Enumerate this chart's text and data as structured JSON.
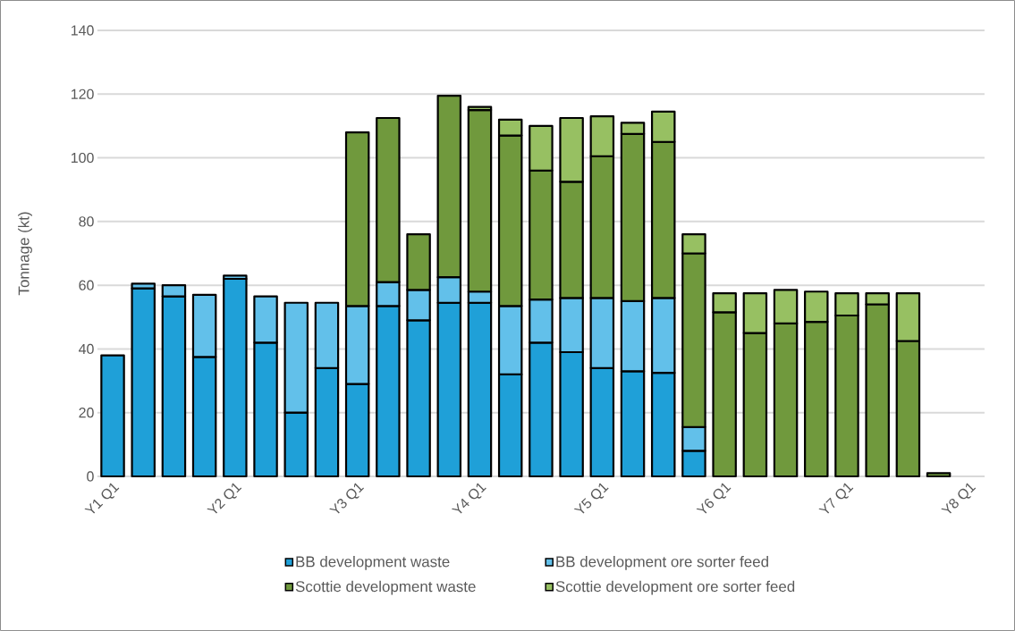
{
  "chart_data": {
    "type": "bar",
    "stacked": true,
    "ylabel": "Tonnage (kt)",
    "categories": [
      "Y1 Q1",
      null,
      null,
      null,
      "Y2 Q1",
      null,
      null,
      null,
      "Y3 Q1",
      null,
      null,
      null,
      "Y4 Q1",
      null,
      null,
      null,
      "Y5 Q1",
      null,
      null,
      null,
      "Y6 Q1",
      null,
      null,
      null,
      "Y7 Q1",
      null,
      null,
      null,
      "Y8 Q1"
    ],
    "series": [
      {
        "name": "BB development waste",
        "color": "#1fa0d8",
        "values": [
          38,
          59,
          56.5,
          37.5,
          62,
          42,
          20,
          34,
          29,
          53.5,
          49,
          54.5,
          54.5,
          32,
          42,
          39,
          34,
          33,
          32.5,
          8,
          null,
          null,
          null,
          null,
          null,
          null,
          null,
          null,
          null
        ]
      },
      {
        "name": "BB development ore sorter feed",
        "color": "#62c0ea",
        "values": [
          null,
          1.5,
          3.5,
          19.5,
          1,
          14.5,
          34.5,
          20.5,
          24.5,
          7.5,
          9.5,
          8,
          3.5,
          21.5,
          13.5,
          17,
          22,
          22,
          23.5,
          7.5,
          null,
          null,
          null,
          null,
          null,
          null,
          null,
          null,
          null
        ]
      },
      {
        "name": "Scottie development waste",
        "color": "#70993d",
        "values": [
          null,
          null,
          null,
          null,
          null,
          null,
          null,
          null,
          54.5,
          51.5,
          17.5,
          57,
          57,
          53.5,
          40.5,
          36.5,
          44.5,
          52.5,
          49,
          54.5,
          51.5,
          45,
          48,
          48.5,
          50.5,
          54,
          42.5,
          1,
          null
        ]
      },
      {
        "name": "Scottie development ore sorter feed",
        "color": "#97c062",
        "values": [
          null,
          null,
          null,
          null,
          null,
          null,
          null,
          null,
          null,
          null,
          null,
          null,
          1,
          5,
          14,
          20,
          12.5,
          3.5,
          9.5,
          6,
          6,
          12.5,
          10.5,
          9.5,
          7,
          3.5,
          15,
          null,
          null
        ]
      }
    ],
    "ylim": [
      0,
      140
    ],
    "yticks": [
      0,
      20,
      40,
      60,
      80,
      100,
      120,
      140
    ],
    "grid": "y",
    "legend": "bottom"
  }
}
